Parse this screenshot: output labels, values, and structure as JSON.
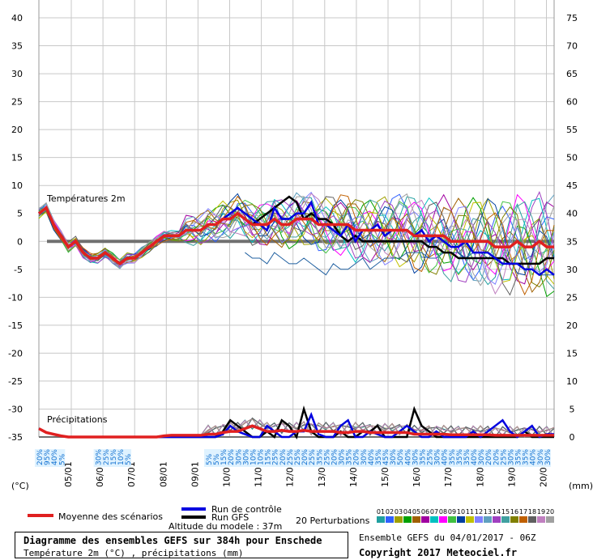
{
  "chart_data": {
    "type": "line",
    "left_axis": {
      "label": "(°C)",
      "ticks": [
        40,
        35,
        30,
        25,
        20,
        15,
        10,
        5,
        0,
        -5,
        -10,
        -15,
        -20,
        -25,
        -30,
        -35
      ],
      "ylim": [
        -35,
        40
      ]
    },
    "right_axis": {
      "label": "(mm)",
      "ticks": [
        75,
        70,
        65,
        60,
        55,
        50,
        45,
        40,
        35,
        30,
        25,
        20,
        15,
        10,
        5,
        0
      ],
      "ylim": [
        0,
        75
      ]
    },
    "x_ticks": [
      "05/01",
      "06/01",
      "07/01",
      "08/01",
      "09/01",
      "10/01",
      "11/01",
      "12/01",
      "13/01",
      "14/01",
      "15/01",
      "16/01",
      "17/01",
      "18/01",
      "19/01",
      "20/01"
    ],
    "grid": true,
    "section_temp_label": "Températures 2m",
    "section_precip_label": "Précipitations",
    "snow_labels": [
      "20%",
      "95%",
      "40%",
      "5%",
      "",
      "",
      "",
      "",
      "30%",
      "25%",
      "15%",
      "10%",
      "5%",
      "",
      "",
      "",
      "",
      "",
      "",
      "",
      "",
      "",
      "",
      "5%",
      "5%",
      "15%",
      "20%",
      "30%",
      "30%",
      "10%",
      "10%",
      "15%",
      "25%",
      "20%",
      "25%",
      "25%",
      "20%",
      "25%",
      "35%",
      "25%",
      "20%",
      "30%",
      "35%",
      "20%",
      "30%",
      "40%",
      "35%",
      "45%",
      "30%",
      "50%",
      "40%",
      "30%",
      "35%",
      "25%",
      "30%",
      "40%",
      "35%",
      "35%",
      "35%",
      "40%",
      "30%",
      "20%",
      "20%",
      "25%",
      "30%",
      "35%",
      "35%",
      "40%",
      "30%",
      "30%"
    ],
    "series": [
      {
        "name": "Moyenne des scénarios",
        "color": "#e02020",
        "temp": [
          5,
          6,
          3,
          1,
          -1,
          0,
          -2,
          -3,
          -3,
          -2,
          -3,
          -4,
          -3,
          -3,
          -2,
          -1,
          0,
          1,
          1,
          1,
          2,
          2,
          2,
          3,
          3,
          4,
          4,
          5,
          4,
          3,
          3,
          3,
          4,
          3,
          3,
          4,
          4,
          4,
          3,
          3,
          3,
          3,
          3,
          2,
          2,
          2,
          2,
          2,
          2,
          2,
          2,
          1,
          1,
          1,
          1,
          1,
          0,
          0,
          0,
          0,
          0,
          0,
          -1,
          -1,
          -1,
          0,
          -1,
          -1,
          0,
          -1,
          -1
        ],
        "precip": [
          1.5,
          0.8,
          0.5,
          0.2,
          0,
          0,
          0,
          0,
          0,
          0,
          0,
          0,
          0,
          0,
          0,
          0,
          0,
          0.2,
          0.3,
          0.3,
          0.3,
          0.3,
          0.3,
          0.5,
          0.5,
          0.8,
          1,
          1,
          1.5,
          2,
          1.5,
          1,
          1,
          1.2,
          1,
          1,
          1.2,
          1,
          1,
          1,
          1,
          0.8,
          0.8,
          1,
          1,
          0.8,
          0.8,
          0.8,
          0.8,
          0.8,
          0.8,
          0.5,
          0.5,
          0.5,
          0.5,
          0.5,
          0.4,
          0.4,
          0.4,
          0.4,
          0.4,
          0.4,
          0.3,
          0.3,
          0.3,
          0.3,
          0.3,
          0.3,
          0.3,
          0.3,
          0.3
        ]
      },
      {
        "name": "Run de contrôle",
        "color": "#0000e0",
        "temp": [
          5,
          6,
          3,
          1,
          -1,
          0,
          -2,
          -3,
          -3,
          -2,
          -3,
          -4,
          -3,
          -3,
          -2,
          -1,
          0,
          1,
          1,
          1,
          2,
          2,
          2,
          3,
          3,
          4,
          5,
          6,
          5,
          4,
          3,
          2,
          6,
          4,
          4,
          5,
          5,
          7,
          3,
          3,
          2,
          1,
          3,
          0,
          2,
          2,
          3,
          1,
          2,
          2,
          2,
          1,
          2,
          0,
          1,
          0,
          -1,
          -1,
          0,
          -2,
          -2,
          -2,
          -3,
          -4,
          -4,
          -4,
          -5,
          -5,
          -6,
          -5,
          -6
        ],
        "precip": [
          1.5,
          0.8,
          0.5,
          0.2,
          0,
          0,
          0,
          0,
          0,
          0,
          0,
          0,
          0,
          0,
          0,
          0,
          0,
          0,
          0,
          0,
          0,
          0,
          0,
          0,
          0,
          0.5,
          2,
          1,
          0.5,
          0,
          0,
          2,
          1,
          0,
          0,
          1,
          1,
          4,
          0.5,
          0,
          0,
          2,
          3,
          0,
          0,
          1,
          0.5,
          0,
          0,
          1,
          2,
          1,
          0,
          0,
          1,
          0,
          0,
          0,
          0,
          1,
          0,
          1,
          2,
          3,
          1,
          0,
          1,
          2,
          0,
          0.5,
          0.5
        ]
      },
      {
        "name": "Run GFS",
        "color": "#000000",
        "temp": [
          5,
          6,
          3,
          1,
          -1,
          0,
          -2,
          -3,
          -3,
          -2,
          -3,
          -4,
          -3,
          -3,
          -2,
          -1,
          0,
          1,
          1,
          1,
          2,
          2,
          2,
          3,
          3,
          4,
          4,
          5,
          4,
          3,
          4,
          5,
          6,
          7,
          8,
          7,
          4,
          5,
          4,
          4,
          3,
          1,
          0,
          1,
          0,
          0,
          0,
          0,
          0,
          0,
          0,
          0,
          0,
          -1,
          -1,
          -2,
          -2,
          -3,
          -3,
          -3,
          -3,
          -3,
          -3,
          -3,
          -4,
          -4,
          -4,
          -4,
          -4,
          -3,
          -3
        ],
        "precip": [
          1.5,
          0.8,
          0.5,
          0.2,
          0,
          0,
          0,
          0,
          0,
          0,
          0,
          0,
          0,
          0,
          0,
          0,
          0,
          0,
          0,
          0,
          0,
          0,
          0,
          0,
          0,
          1,
          3,
          2,
          1,
          0,
          0,
          1,
          0,
          3,
          2,
          0,
          5,
          1,
          0,
          0,
          0,
          1,
          0,
          0,
          1,
          1,
          2,
          0,
          0,
          0,
          0,
          5,
          2,
          1,
          0,
          0,
          0,
          0,
          0,
          0,
          0,
          0,
          0,
          0,
          0,
          0,
          1,
          0,
          0,
          0,
          0
        ]
      }
    ],
    "control_baseline": [
      0,
      0,
      0,
      0,
      0,
      0,
      0,
      0,
      0,
      0,
      0,
      0,
      0,
      0,
      0,
      0,
      0,
      0,
      0,
      0,
      0,
      0,
      0,
      0,
      0,
      0,
      0,
      0,
      -2,
      -3,
      -3,
      -4,
      -2,
      -3,
      -4,
      -4,
      -3,
      -4,
      -5,
      -6,
      -4,
      -5,
      -5,
      -4,
      -3,
      -5,
      -4,
      -3,
      -3,
      -3,
      -2,
      -2,
      -2,
      -3,
      -3,
      -2,
      -2,
      -2,
      -3,
      -2,
      -2,
      -3,
      -3,
      -3,
      -4,
      -4,
      -5,
      -5,
      -6,
      -6,
      -6
    ]
  },
  "legend": {
    "mean_label": "Moyenne des scénarios",
    "control_label": "Run de contrôle",
    "gfs_label": "Run GFS",
    "altitude_label": "Altitude du modele : 37m",
    "perturb_label": "20 Perturbations",
    "perturb_numbers": [
      "01",
      "02",
      "03",
      "04",
      "05",
      "06",
      "07",
      "08",
      "09",
      "10",
      "11",
      "12",
      "13",
      "14",
      "15",
      "16",
      "17",
      "18",
      "19",
      "20"
    ],
    "perturb_colors": [
      "#20a0a0",
      "#3060ff",
      "#a0a000",
      "#00a000",
      "#a06000",
      "#a000a0",
      "#00c0c0",
      "#ff00ff",
      "#40c040",
      "#0040a0",
      "#c0c000",
      "#8080ff",
      "#60a0c0",
      "#a040c0",
      "#40a0a0",
      "#808000",
      "#c06000",
      "#606060",
      "#c080c0",
      "#a0a0a0"
    ]
  },
  "title": {
    "line1": "Diagramme des ensembles GEFS sur 384h pour Enschede",
    "line2": "Température 2m (°C) , précipitations (mm)",
    "ensemble": "Ensemble GEFS du 04/01/2017 - 06Z",
    "copyright": "Copyright 2017 Meteociel.fr"
  }
}
